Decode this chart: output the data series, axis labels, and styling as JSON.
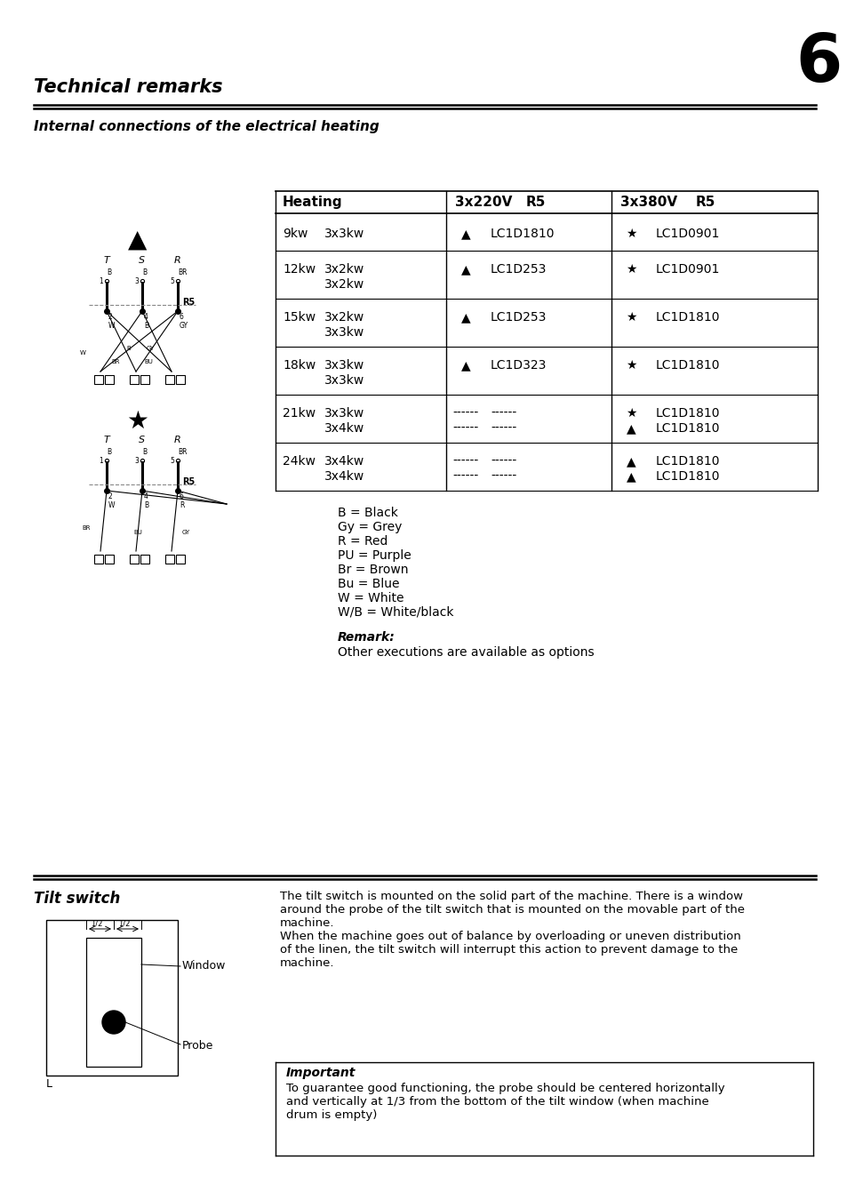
{
  "page_number": "6",
  "title": "Technical remarks",
  "subtitle": "Internal connections of the electrical heating",
  "table_rows": [
    {
      "kw": "9kw",
      "config": [
        "3x3kw"
      ],
      "v220_sym": [
        "▲"
      ],
      "v220_r5": [
        "LC1D1810"
      ],
      "v380_sym": [
        "★"
      ],
      "v380_r5": [
        "LC1D0901"
      ]
    },
    {
      "kw": "12kw",
      "config": [
        "3x2kw",
        "3x2kw"
      ],
      "v220_sym": [
        "▲"
      ],
      "v220_r5": [
        "LC1D253"
      ],
      "v380_sym": [
        "★"
      ],
      "v380_r5": [
        "LC1D0901"
      ]
    },
    {
      "kw": "15kw",
      "config": [
        "3x2kw",
        "3x3kw"
      ],
      "v220_sym": [
        "▲"
      ],
      "v220_r5": [
        "LC1D253"
      ],
      "v380_sym": [
        "★"
      ],
      "v380_r5": [
        "LC1D1810"
      ]
    },
    {
      "kw": "18kw",
      "config": [
        "3x3kw",
        "3x3kw"
      ],
      "v220_sym": [
        "▲"
      ],
      "v220_r5": [
        "LC1D323"
      ],
      "v380_sym": [
        "★"
      ],
      "v380_r5": [
        "LC1D1810"
      ]
    },
    {
      "kw": "21kw",
      "config": [
        "3x3kw",
        "3x4kw"
      ],
      "v220_sym": [
        "------",
        "------"
      ],
      "v220_r5": [
        "------",
        "------"
      ],
      "v380_sym": [
        "★",
        "▲"
      ],
      "v380_r5": [
        "LC1D1810",
        "LC1D1810"
      ]
    },
    {
      "kw": "24kw",
      "config": [
        "3x4kw",
        "3x4kw"
      ],
      "v220_sym": [
        "------",
        "------"
      ],
      "v220_r5": [
        "------",
        "------"
      ],
      "v380_sym": [
        "▲",
        "▲"
      ],
      "v380_r5": [
        "LC1D1810",
        "LC1D1810"
      ]
    }
  ],
  "legend_lines": [
    "B = Black",
    "Gy = Grey",
    "R = Red",
    "PU = Purple",
    "Br = Brown",
    "Bu = Blue",
    "W = White",
    "W/B = White/black"
  ],
  "remark_title": "Remark:",
  "remark_text": "Other executions are available as options",
  "tilt_switch_title": "Tilt switch",
  "tilt_switch_text1": "The tilt switch is mounted on the solid part of the machine. There is a window\naround the probe of the tilt switch that is mounted on the movable part of the\nmachine.\nWhen the machine goes out of balance by overloading or uneven distribution\nof the linen, the tilt switch will interrupt this action to prevent damage to the\nmachine.",
  "important_title": "Important",
  "important_text": "To guarantee good functioning, the probe should be centered horizontally\nand vertically at 1/3 from the bottom of the tilt window (when machine\ndrum is empty)",
  "bg_color": "#ffffff",
  "text_color": "#000000"
}
